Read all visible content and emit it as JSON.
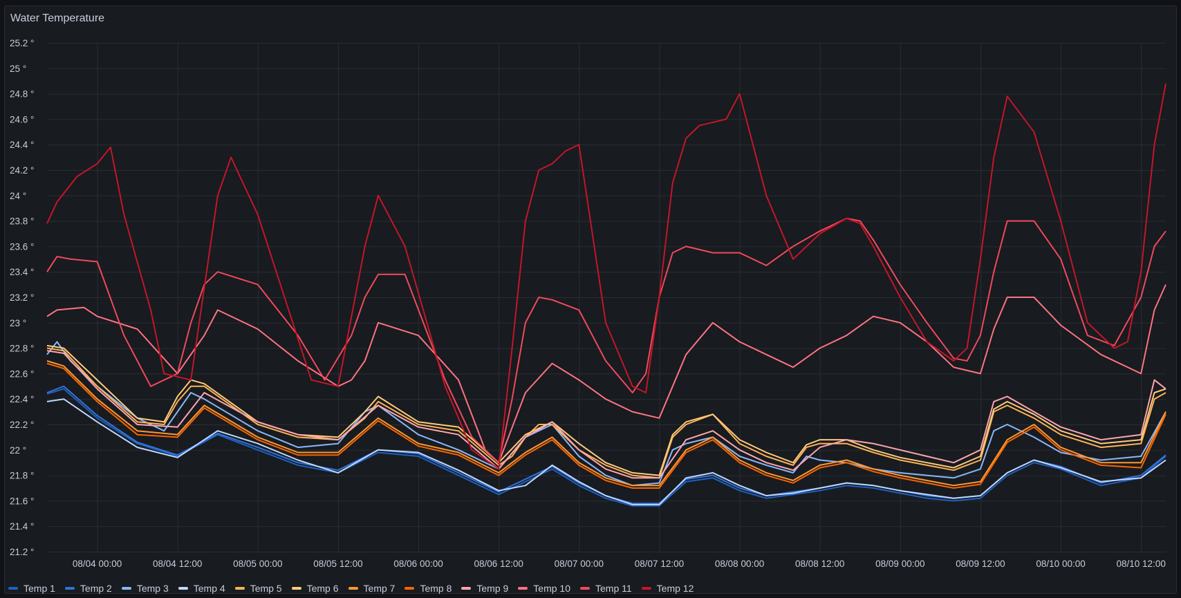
{
  "panel": {
    "title": "Water Temperature"
  },
  "chart_data": {
    "type": "line",
    "title": "Water Temperature",
    "xlabel": "",
    "ylabel": "",
    "unit": "°",
    "ylim": [
      21.2,
      25.2
    ],
    "y_ticks": [
      "21.2 °",
      "21.4 °",
      "21.6 °",
      "21.8 °",
      "22 °",
      "22.2 °",
      "22.4 °",
      "22.6 °",
      "22.8 °",
      "23 °",
      "23.2 °",
      "23.4 °",
      "23.6 °",
      "23.8 °",
      "24 °",
      "24.2 °",
      "24.4 °",
      "24.6 °",
      "24.8 °",
      "25 °",
      "25.2 °"
    ],
    "y_tick_values": [
      21.2,
      21.4,
      21.6,
      21.8,
      22.0,
      22.2,
      22.4,
      22.6,
      22.8,
      23.0,
      23.2,
      23.4,
      23.6,
      23.8,
      24.0,
      24.2,
      24.4,
      24.6,
      24.8,
      25.0,
      25.2
    ],
    "x_ticks": [
      "08/04 00:00",
      "08/04 12:00",
      "08/05 00:00",
      "08/05 12:00",
      "08/06 00:00",
      "08/06 12:00",
      "08/07 00:00",
      "08/07 12:00",
      "08/08 00:00",
      "08/08 12:00",
      "08/09 00:00",
      "08/09 12:00",
      "08/10 00:00",
      "08/10 12:00"
    ],
    "x_range_hours": [
      -7.5,
      159.7
    ],
    "x_tick_hours": [
      0,
      12,
      24,
      36,
      48,
      60,
      72,
      84,
      96,
      108,
      120,
      132,
      144,
      156
    ],
    "grid": true,
    "legend_position": "bottom-left",
    "series": [
      {
        "name": "Temp 1",
        "color": "#1f60c4",
        "x": [
          -7.5,
          -5,
          0,
          6,
          12,
          18,
          24,
          30,
          36,
          42,
          48,
          54,
          60,
          64,
          68,
          72,
          76,
          80,
          84,
          88,
          92,
          96,
          100,
          104,
          108,
          112,
          116,
          120,
          124,
          128,
          132,
          136,
          140,
          144,
          150,
          156,
          159.7
        ],
        "y": [
          22.44,
          22.48,
          22.25,
          22.05,
          21.95,
          22.12,
          22.0,
          21.88,
          21.82,
          21.98,
          21.95,
          21.8,
          21.65,
          21.75,
          21.85,
          21.72,
          21.62,
          21.56,
          21.56,
          21.75,
          21.78,
          21.68,
          21.62,
          21.65,
          21.68,
          21.72,
          21.7,
          21.66,
          21.62,
          21.6,
          21.62,
          21.8,
          21.9,
          21.85,
          21.72,
          21.78,
          21.95
        ]
      },
      {
        "name": "Temp 2",
        "color": "#3274d9",
        "x": [
          -7.5,
          -5,
          0,
          6,
          12,
          18,
          24,
          30,
          36,
          42,
          48,
          54,
          60,
          64,
          68,
          72,
          76,
          80,
          84,
          88,
          92,
          96,
          100,
          104,
          108,
          112,
          116,
          120,
          124,
          128,
          132,
          136,
          140,
          144,
          150,
          156,
          159.7
        ],
        "y": [
          22.45,
          22.5,
          22.27,
          22.06,
          21.96,
          22.13,
          22.02,
          21.9,
          21.84,
          22.0,
          21.97,
          21.82,
          21.67,
          21.77,
          21.87,
          21.74,
          21.64,
          21.58,
          21.58,
          21.77,
          21.8,
          21.7,
          21.64,
          21.67,
          21.7,
          21.74,
          21.72,
          21.68,
          21.64,
          21.62,
          21.64,
          21.82,
          21.92,
          21.87,
          21.74,
          21.8,
          21.96
        ]
      },
      {
        "name": "Temp 3",
        "color": "#8ab8ff",
        "x": [
          -7.5,
          -6,
          -4,
          0,
          6,
          10,
          12,
          14,
          16,
          24,
          30,
          36,
          40,
          42,
          48,
          54,
          60,
          64,
          68,
          72,
          76,
          80,
          84,
          86,
          88,
          92,
          96,
          100,
          104,
          106,
          108,
          112,
          116,
          120,
          124,
          128,
          132,
          134,
          136,
          140,
          144,
          150,
          156,
          159.7
        ],
        "y": [
          22.75,
          22.85,
          22.7,
          22.5,
          22.25,
          22.15,
          22.3,
          22.45,
          22.4,
          22.15,
          22.02,
          22.05,
          22.3,
          22.35,
          22.12,
          22.0,
          21.85,
          22.1,
          22.2,
          21.95,
          21.8,
          21.72,
          21.74,
          22.0,
          22.05,
          22.1,
          21.95,
          21.88,
          21.82,
          21.95,
          21.92,
          21.9,
          21.85,
          21.82,
          21.8,
          21.78,
          21.85,
          22.15,
          22.2,
          22.1,
          21.98,
          21.92,
          21.95,
          22.3
        ]
      },
      {
        "name": "Temp 4",
        "color": "#c0d8ff",
        "x": [
          -7.5,
          -5,
          0,
          6,
          12,
          18,
          24,
          30,
          36,
          42,
          48,
          54,
          60,
          64,
          68,
          72,
          76,
          80,
          84,
          88,
          92,
          96,
          100,
          104,
          108,
          112,
          116,
          120,
          124,
          128,
          132,
          136,
          140,
          144,
          150,
          156,
          159.7
        ],
        "y": [
          22.38,
          22.4,
          22.22,
          22.02,
          21.94,
          22.15,
          22.05,
          21.92,
          21.82,
          22.0,
          21.98,
          21.84,
          21.68,
          21.72,
          21.88,
          21.75,
          21.64,
          21.57,
          21.57,
          21.78,
          21.82,
          21.72,
          21.64,
          21.66,
          21.7,
          21.74,
          21.72,
          21.68,
          21.65,
          21.62,
          21.64,
          21.82,
          21.92,
          21.86,
          21.75,
          21.78,
          21.92
        ]
      },
      {
        "name": "Temp 5",
        "color": "#ffb357",
        "x": [
          -7.5,
          -5,
          0,
          6,
          10,
          12,
          14,
          16,
          24,
          30,
          36,
          40,
          42,
          48,
          54,
          60,
          62,
          64,
          66,
          68,
          72,
          76,
          80,
          84,
          86,
          88,
          92,
          96,
          100,
          104,
          106,
          108,
          112,
          116,
          120,
          124,
          128,
          132,
          134,
          136,
          140,
          144,
          150,
          156,
          158,
          159.7
        ],
        "y": [
          22.8,
          22.78,
          22.5,
          22.22,
          22.2,
          22.38,
          22.5,
          22.5,
          22.2,
          22.1,
          22.08,
          22.25,
          22.38,
          22.2,
          22.15,
          21.88,
          21.95,
          22.1,
          22.2,
          22.2,
          22.0,
          21.88,
          21.8,
          21.78,
          22.1,
          22.2,
          22.28,
          22.05,
          21.95,
          21.88,
          22.02,
          22.05,
          22.05,
          21.98,
          21.92,
          21.88,
          21.84,
          21.92,
          22.3,
          22.35,
          22.25,
          22.12,
          22.02,
          22.05,
          22.4,
          22.45
        ]
      },
      {
        "name": "Temp 6",
        "color": "#ffcb7d",
        "x": [
          -7.5,
          -5,
          0,
          6,
          10,
          12,
          14,
          16,
          24,
          30,
          36,
          40,
          42,
          48,
          54,
          60,
          64,
          68,
          72,
          76,
          80,
          84,
          86,
          88,
          92,
          96,
          100,
          104,
          106,
          108,
          112,
          116,
          120,
          124,
          128,
          132,
          134,
          136,
          140,
          144,
          150,
          156,
          158,
          159.7
        ],
        "y": [
          22.82,
          22.8,
          22.55,
          22.25,
          22.22,
          22.42,
          22.55,
          22.52,
          22.22,
          22.12,
          22.1,
          22.3,
          22.42,
          22.22,
          22.18,
          21.9,
          22.12,
          22.22,
          22.05,
          21.9,
          21.82,
          21.8,
          22.12,
          22.22,
          22.28,
          22.08,
          21.98,
          21.9,
          22.04,
          22.08,
          22.08,
          22.0,
          21.94,
          21.9,
          21.86,
          21.95,
          22.32,
          22.38,
          22.28,
          22.15,
          22.05,
          22.08,
          22.45,
          22.48
        ]
      },
      {
        "name": "Temp 7",
        "color": "#ff9830",
        "x": [
          -7.5,
          -5,
          0,
          6,
          12,
          16,
          24,
          30,
          36,
          42,
          48,
          54,
          60,
          64,
          68,
          72,
          76,
          80,
          84,
          88,
          92,
          96,
          100,
          104,
          108,
          112,
          116,
          120,
          124,
          128,
          132,
          136,
          140,
          144,
          150,
          156,
          159.7
        ],
        "y": [
          22.7,
          22.66,
          22.4,
          22.15,
          22.12,
          22.35,
          22.1,
          21.98,
          21.98,
          22.25,
          22.05,
          21.98,
          21.82,
          21.98,
          22.1,
          21.9,
          21.78,
          21.72,
          21.72,
          22.0,
          22.1,
          21.92,
          21.82,
          21.76,
          21.88,
          21.92,
          21.85,
          21.8,
          21.76,
          21.72,
          21.75,
          22.08,
          22.2,
          22.02,
          21.9,
          21.9,
          22.3
        ]
      },
      {
        "name": "Temp 8",
        "color": "#fa6400",
        "x": [
          -7.5,
          -5,
          0,
          6,
          12,
          16,
          24,
          30,
          36,
          42,
          48,
          54,
          60,
          64,
          68,
          72,
          76,
          80,
          84,
          88,
          92,
          96,
          100,
          104,
          108,
          112,
          116,
          120,
          124,
          128,
          132,
          136,
          140,
          144,
          150,
          156,
          159.7
        ],
        "y": [
          22.68,
          22.64,
          22.38,
          22.12,
          22.1,
          22.33,
          22.08,
          21.96,
          21.96,
          22.23,
          22.03,
          21.96,
          21.8,
          21.96,
          22.08,
          21.88,
          21.76,
          21.7,
          21.7,
          21.98,
          22.08,
          21.9,
          21.8,
          21.74,
          21.86,
          21.9,
          21.83,
          21.78,
          21.74,
          21.7,
          21.73,
          22.06,
          22.18,
          22.0,
          21.88,
          21.86,
          22.28
        ]
      },
      {
        "name": "Temp 9",
        "color": "#ffa6b0",
        "x": [
          -7.5,
          -5,
          0,
          6,
          12,
          16,
          24,
          30,
          36,
          42,
          48,
          54,
          60,
          64,
          68,
          72,
          76,
          80,
          84,
          88,
          92,
          96,
          100,
          104,
          108,
          112,
          116,
          120,
          124,
          128,
          132,
          134,
          136,
          140,
          144,
          150,
          156,
          158,
          159.7
        ],
        "y": [
          22.78,
          22.76,
          22.48,
          22.2,
          22.18,
          22.45,
          22.22,
          22.12,
          22.08,
          22.35,
          22.18,
          22.12,
          21.85,
          22.1,
          22.22,
          22.0,
          21.85,
          21.78,
          21.78,
          22.08,
          22.15,
          22.0,
          21.9,
          21.84,
          22.02,
          22.08,
          22.05,
          22.0,
          21.95,
          21.9,
          22.0,
          22.38,
          22.42,
          22.3,
          22.18,
          22.08,
          22.12,
          22.55,
          22.48
        ]
      },
      {
        "name": "Temp 10",
        "color": "#ff7383",
        "x": [
          -7.5,
          -6,
          -2,
          0,
          6,
          12,
          16,
          18,
          24,
          30,
          36,
          38,
          40,
          42,
          48,
          54,
          58,
          60,
          64,
          68,
          72,
          76,
          80,
          84,
          86,
          88,
          92,
          96,
          100,
          104,
          108,
          112,
          116,
          120,
          124,
          128,
          132,
          134,
          136,
          140,
          144,
          150,
          156,
          158,
          159.7
        ],
        "y": [
          23.05,
          23.1,
          23.12,
          23.05,
          22.95,
          22.6,
          22.9,
          23.1,
          22.95,
          22.7,
          22.5,
          22.55,
          22.7,
          23.0,
          22.9,
          22.55,
          22.0,
          21.9,
          22.45,
          22.68,
          22.55,
          22.4,
          22.3,
          22.25,
          22.5,
          22.75,
          23.0,
          22.85,
          22.75,
          22.65,
          22.8,
          22.9,
          23.05,
          23.0,
          22.85,
          22.65,
          22.6,
          22.95,
          23.2,
          23.2,
          22.98,
          22.75,
          22.6,
          23.1,
          23.3
        ]
      },
      {
        "name": "Temp 11",
        "color": "#f2495c",
        "x": [
          -7.5,
          -6,
          -4,
          0,
          4,
          8,
          12,
          14,
          16,
          18,
          24,
          30,
          34,
          38,
          40,
          42,
          46,
          52,
          56,
          60,
          62,
          64,
          66,
          68,
          72,
          74,
          76,
          80,
          82,
          84,
          86,
          88,
          92,
          96,
          100,
          104,
          108,
          112,
          114,
          116,
          120,
          124,
          128,
          130,
          132,
          134,
          136,
          140,
          144,
          148,
          152,
          156,
          158,
          159.7
        ],
        "y": [
          23.4,
          23.52,
          23.5,
          23.48,
          22.9,
          22.5,
          22.6,
          23.0,
          23.3,
          23.4,
          23.3,
          22.9,
          22.55,
          22.9,
          23.2,
          23.38,
          23.38,
          22.55,
          22.1,
          21.9,
          22.4,
          23.0,
          23.2,
          23.18,
          23.1,
          22.9,
          22.7,
          22.45,
          22.6,
          23.2,
          23.55,
          23.6,
          23.55,
          23.55,
          23.45,
          23.6,
          23.72,
          23.82,
          23.8,
          23.65,
          23.3,
          23.0,
          22.72,
          22.7,
          22.9,
          23.4,
          23.8,
          23.8,
          23.5,
          22.9,
          22.82,
          23.2,
          23.6,
          23.72
        ]
      },
      {
        "name": "Temp 12",
        "color": "#c4162a",
        "x": [
          -7.5,
          -6,
          -3,
          0,
          2,
          4,
          8,
          10,
          14,
          18,
          20,
          24,
          28,
          32,
          36,
          40,
          42,
          46,
          52,
          56,
          60,
          62,
          64,
          66,
          68,
          70,
          72,
          74,
          76,
          80,
          82,
          84,
          86,
          88,
          90,
          94,
          96,
          100,
          104,
          108,
          112,
          114,
          116,
          120,
          124,
          128,
          130,
          132,
          134,
          136,
          140,
          144,
          148,
          152,
          154,
          156,
          158,
          159.7
        ],
        "y": [
          23.78,
          23.95,
          24.15,
          24.25,
          24.38,
          23.85,
          23.1,
          22.6,
          22.55,
          24.0,
          24.3,
          23.85,
          23.2,
          22.55,
          22.5,
          23.6,
          24.0,
          23.6,
          22.5,
          22.0,
          21.85,
          22.8,
          23.8,
          24.2,
          24.25,
          24.35,
          24.4,
          23.7,
          23.0,
          22.5,
          22.45,
          23.2,
          24.1,
          24.45,
          24.55,
          24.6,
          24.8,
          24.0,
          23.5,
          23.7,
          23.82,
          23.78,
          23.6,
          23.2,
          22.85,
          22.7,
          22.8,
          23.5,
          24.3,
          24.78,
          24.5,
          23.8,
          23.0,
          22.8,
          22.85,
          23.4,
          24.4,
          24.88
        ]
      }
    ]
  }
}
